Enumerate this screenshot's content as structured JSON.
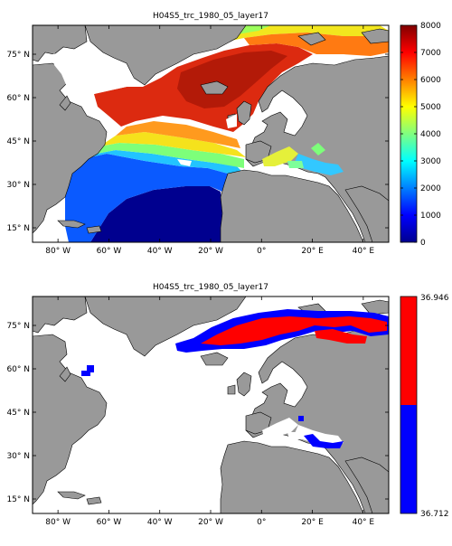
{
  "chart_data": [
    {
      "type": "heatmap",
      "title": "H04S5_trc_1980_05_layer17",
      "x_ticks": [
        "80° W",
        "60° W",
        "40° W",
        "20° W",
        "0°",
        "20° E",
        "40° E"
      ],
      "x_tick_values": [
        -80,
        -60,
        -40,
        -20,
        0,
        20,
        40
      ],
      "y_ticks": [
        "75° N",
        "60° N",
        "45° N",
        "30° N",
        "15° N"
      ],
      "y_tick_values": [
        75,
        60,
        45,
        30,
        15
      ],
      "xlim": [
        -90,
        50
      ],
      "ylim": [
        10,
        85
      ],
      "colorbar": {
        "colormap": "jet",
        "range": [
          0,
          8000
        ],
        "ticks": [
          "0",
          "1000",
          "2000",
          "3000",
          "4000",
          "5000",
          "6000",
          "7000",
          "8000"
        ]
      },
      "field_description_values": {
        "subtropical_gyre_min": 0,
        "northeast_atlantic_max": 6500,
        "arctic_band": 4000
      }
    },
    {
      "type": "heatmap",
      "title": "H04S5_trc_1980_05_layer17",
      "x_ticks": [
        "80° W",
        "60° W",
        "40° W",
        "20° W",
        "0°",
        "20° E",
        "40° E"
      ],
      "x_tick_values": [
        -80,
        -60,
        -40,
        -20,
        0,
        20,
        40
      ],
      "y_ticks": [
        "75° N",
        "60° N",
        "45° N",
        "30° N",
        "15° N"
      ],
      "y_tick_values": [
        75,
        60,
        45,
        30,
        15
      ],
      "xlim": [
        -90,
        50
      ],
      "ylim": [
        10,
        85
      ],
      "colorbar": {
        "colormap": "two-class",
        "range": [
          36.712,
          36.946
        ],
        "ticks": [
          "36.946",
          "36.712"
        ],
        "colors": [
          "#ff0000",
          "#0000ff"
        ]
      }
    }
  ],
  "colors": {
    "land": "#999999",
    "ocean_mask": "#ffffff",
    "axis": "#000000"
  }
}
